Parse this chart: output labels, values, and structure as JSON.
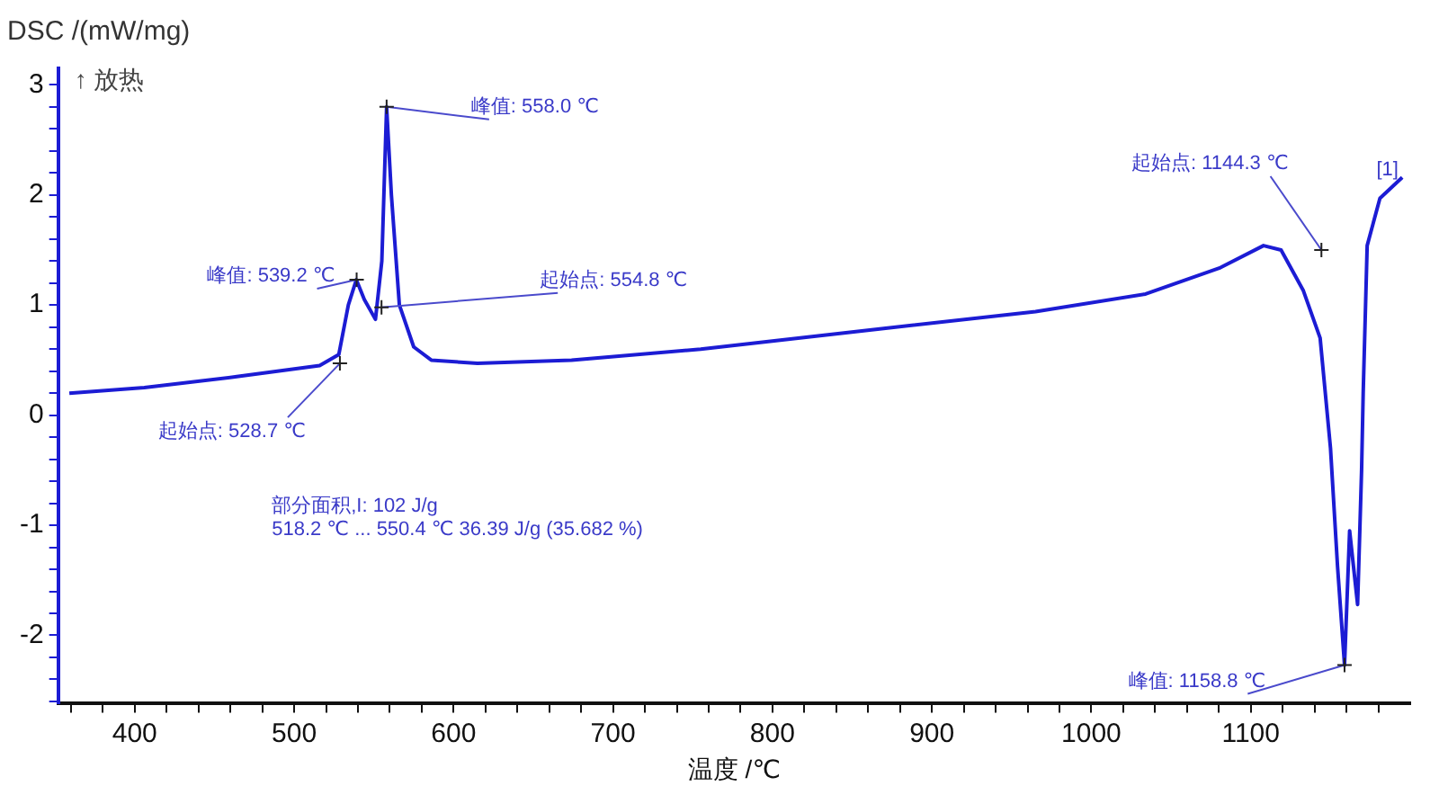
{
  "chart_data": {
    "type": "line",
    "xlabel": "温度 /℃",
    "ylabel": "DSC /(mW/mg)",
    "x": [
      359,
      406,
      464,
      516,
      528,
      534,
      539,
      544,
      551,
      555,
      558,
      561,
      566,
      575,
      586,
      615,
      674,
      755,
      871,
      965,
      1034,
      1081,
      1108,
      1119,
      1133,
      1143.5,
      1150,
      1154.4,
      1158.8,
      1162,
      1167,
      1169.5,
      1170.5,
      1173,
      1181,
      1195
    ],
    "series": [
      {
        "color": "#1c1cd4",
        "values": [
          0.2,
          0.25,
          0.35,
          0.45,
          0.55,
          1.0,
          1.23,
          1.05,
          0.87,
          1.4,
          2.8,
          2.0,
          1.0,
          0.62,
          0.5,
          0.47,
          0.5,
          0.6,
          0.79,
          0.94,
          1.1,
          1.34,
          1.54,
          1.5,
          1.13,
          0.7,
          -0.3,
          -1.37,
          -2.27,
          -1.05,
          -1.72,
          -0.5,
          0.2,
          1.54,
          1.97,
          2.16
        ]
      }
    ],
    "xlim": [
      352,
      1200
    ],
    "xticks": [
      {
        "value": 360,
        "label": null
      },
      {
        "value": 380,
        "label": null
      },
      400,
      {
        "value": 420,
        "label": null
      },
      {
        "value": 440,
        "label": null
      },
      {
        "value": 460,
        "label": null
      },
      {
        "value": 480,
        "label": null
      },
      500,
      {
        "value": 520,
        "label": null
      },
      {
        "value": 540,
        "label": null
      },
      {
        "value": 560,
        "label": null
      },
      {
        "value": 580,
        "label": null
      },
      600,
      {
        "value": 620,
        "label": null
      },
      {
        "value": 640,
        "label": null
      },
      {
        "value": 660,
        "label": null
      },
      {
        "value": 680,
        "label": null
      },
      700,
      {
        "value": 720,
        "label": null
      },
      {
        "value": 740,
        "label": null
      },
      {
        "value": 760,
        "label": null
      },
      {
        "value": 780,
        "label": null
      },
      800,
      {
        "value": 820,
        "label": null
      },
      {
        "value": 840,
        "label": null
      },
      {
        "value": 860,
        "label": null
      },
      {
        "value": 880,
        "label": null
      },
      900,
      {
        "value": 920,
        "label": null
      },
      {
        "value": 940,
        "label": null
      },
      {
        "value": 960,
        "label": null
      },
      {
        "value": 980,
        "label": null
      },
      1000,
      {
        "value": 1020,
        "label": null
      },
      {
        "value": 1040,
        "label": null
      },
      {
        "value": 1060,
        "label": null
      },
      {
        "value": 1080,
        "label": null
      },
      1100,
      {
        "value": 1120,
        "label": null
      },
      {
        "value": 1140,
        "label": null
      },
      {
        "value": 1160,
        "label": null
      },
      {
        "value": 1180,
        "label": null
      }
    ],
    "ylim": [
      -2.62,
      3.15
    ],
    "yticks": [
      {
        "value": -2.6,
        "label": null
      },
      {
        "value": -2.4,
        "label": null
      },
      {
        "value": -2.2,
        "label": null
      },
      -2,
      {
        "value": -1.8,
        "label": null
      },
      {
        "value": -1.6,
        "label": null
      },
      {
        "value": -1.4,
        "label": null
      },
      {
        "value": -1.2,
        "label": null
      },
      -1,
      {
        "value": -0.8,
        "label": null
      },
      {
        "value": -0.6,
        "label": null
      },
      {
        "value": -0.4,
        "label": null
      },
      {
        "value": -0.2,
        "label": null
      },
      0,
      {
        "value": 0.2,
        "label": null
      },
      {
        "value": 0.4,
        "label": null
      },
      {
        "value": 0.6,
        "label": null
      },
      {
        "value": 0.8,
        "label": null
      },
      1,
      {
        "value": 1.2,
        "label": null
      },
      {
        "value": 1.4,
        "label": null
      },
      {
        "value": 1.6,
        "label": null
      },
      {
        "value": 1.8,
        "label": null
      },
      2,
      {
        "value": 2.2,
        "label": null
      },
      {
        "value": 2.4,
        "label": null
      },
      {
        "value": 2.6,
        "label": null
      },
      {
        "value": 2.8,
        "label": null
      },
      3
    ],
    "grid": false,
    "legend": false,
    "marker": "none",
    "line_style": "solid",
    "annotations": [
      {
        "text": "峰值: 558.0 ℃",
        "x": 558.0,
        "y": 2.8
      },
      {
        "text": "峰值: 539.2 ℃",
        "x": 539.2,
        "y": 1.23
      },
      {
        "text": "起始点: 554.8 ℃",
        "x": 554.8,
        "y": 0.98
      },
      {
        "text": "起始点: 528.7 ℃",
        "x": 528.7,
        "y": 0.47
      },
      {
        "text": "起始点: 1144.3 ℃",
        "x": 1144.3,
        "y": 1.5
      },
      {
        "text": "峰值: 1158.8 ℃",
        "x": 1158.8,
        "y": -2.27
      },
      "部分面积,I: 102 J/g\n518.2 ℃ ... 550.4 ℃ 36.39 J/g (35.682 %)",
      "[1]",
      "↑ 放热"
    ]
  }
}
